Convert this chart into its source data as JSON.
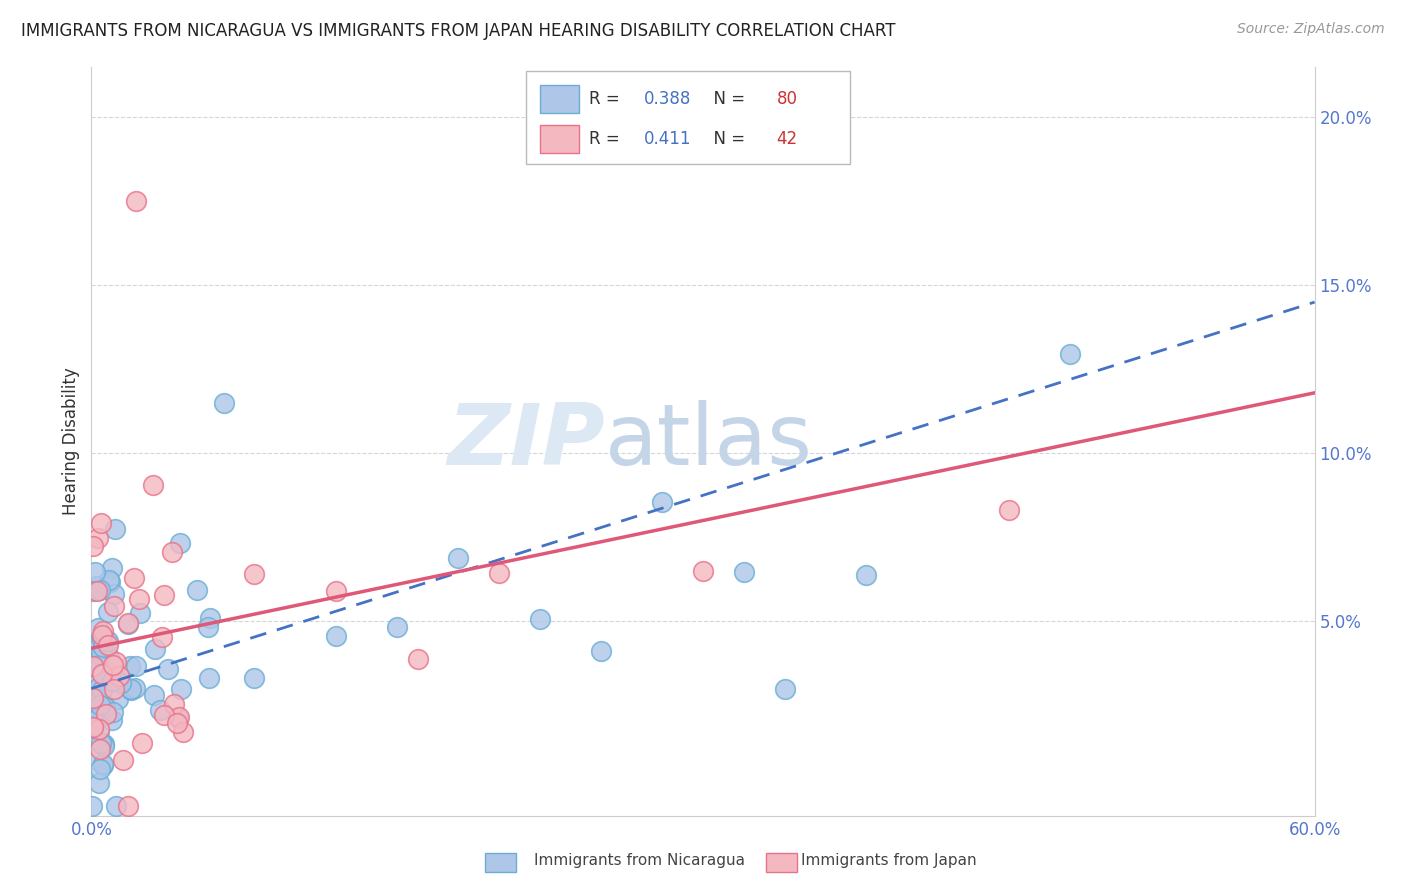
{
  "title": "IMMIGRANTS FROM NICARAGUA VS IMMIGRANTS FROM JAPAN HEARING DISABILITY CORRELATION CHART",
  "source": "Source: ZipAtlas.com",
  "ylabel": "Hearing Disability",
  "background_color": "#ffffff",
  "grid_color": "#cccccc",
  "watermark_zip": "ZIP",
  "watermark_atlas": "atlas",
  "nicaragua_color": "#aec6e8",
  "nicaragua_edge_color": "#6aaed6",
  "japan_color": "#f4b8c1",
  "japan_edge_color": "#e8728a",
  "trendline_nicaragua_color": "#4472c4",
  "trendline_japan_color": "#e05878",
  "R_nicaragua": 0.388,
  "N_nicaragua": 80,
  "R_japan": 0.411,
  "N_japan": 42,
  "xmin": 0.0,
  "xmax": 0.6,
  "ymin": -0.008,
  "ymax": 0.215,
  "trendline_nic_x0": 0.0,
  "trendline_nic_y0": 0.03,
  "trendline_nic_x1": 0.6,
  "trendline_nic_y1": 0.145,
  "trendline_jap_x0": 0.0,
  "trendline_jap_y0": 0.042,
  "trendline_jap_x1": 0.6,
  "trendline_jap_y1": 0.118
}
